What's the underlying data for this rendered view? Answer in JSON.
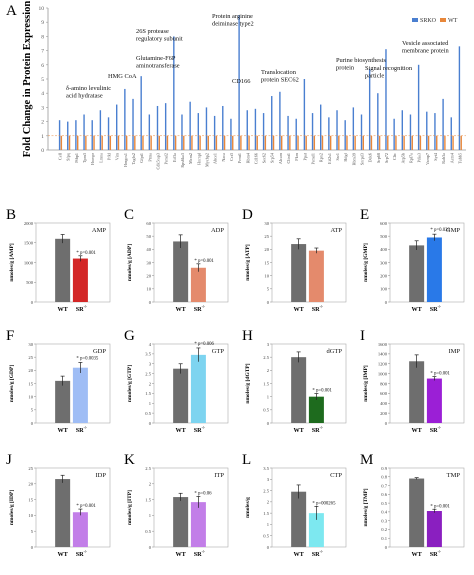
{
  "chart_data": [
    {
      "panel": "A",
      "type": "bar",
      "ylabel": "Fold Change in Protein Expression",
      "ylim": [
        0,
        10
      ],
      "yticks": [
        0,
        1,
        2,
        3,
        4,
        5,
        6,
        7,
        8,
        9,
        10
      ],
      "legend": [
        "SRKO",
        "WT"
      ],
      "colors": {
        "SRKO": "#4a7fd0",
        "WT": "#e8873a"
      },
      "categories": [
        "Cell",
        "Sfpq",
        "Ptbp1",
        "Tpm3",
        "Hnrnpr",
        "Lmna",
        "Pfkl",
        "Vim",
        "Hmgcs1",
        "Tagln2",
        "Gfpt1",
        "Ptma",
        "Cdk5rap3",
        "Psmd2",
        "Eif3a",
        "Rps6ka3",
        "Mcm2",
        "Hnrnpl",
        "Mycbp2",
        "Abce1",
        "Naca",
        "Cct3",
        "Prmt1",
        "Rbm4",
        "Cd166",
        "Sec62",
        "Srp54",
        "Alcam",
        "Clint1",
        "Pkm",
        "Ppat",
        "Psmd1",
        "Rpn2",
        "Eif2s1",
        "Ssr1",
        "Hdgf",
        "Rbm39",
        "Snrpd3",
        "Ddx6",
        "Srp68",
        "Srp72",
        "Cltc",
        "Atp5b",
        "Rpl7a",
        "Pdia3",
        "Vamp7",
        "Syt4",
        "Rab3a",
        "Actn4",
        "Tubb5"
      ],
      "series": [
        {
          "name": "SRKO",
          "values": [
            2.1,
            2.0,
            2.1,
            2.5,
            2.1,
            2.8,
            2.3,
            3.2,
            4.3,
            3.6,
            5.2,
            2.5,
            3.1,
            3.3,
            8.0,
            2.5,
            3.4,
            2.6,
            3.0,
            2.4,
            3.1,
            2.2,
            9.5,
            2.8,
            2.9,
            2.6,
            3.8,
            4.1,
            2.4,
            2.2,
            5.0,
            2.6,
            3.2,
            2.3,
            2.8,
            2.1,
            3.0,
            2.5,
            5.7,
            4.0,
            7.1,
            2.2,
            2.8,
            2.5,
            6.0,
            2.7,
            2.6,
            3.6,
            2.3,
            7.3
          ]
        },
        {
          "name": "WT",
          "values": [
            1,
            1,
            1,
            1,
            1,
            1,
            1,
            1,
            1,
            1,
            1,
            1,
            1,
            1,
            1,
            1,
            1,
            1,
            1,
            1,
            1,
            1,
            1,
            1,
            1,
            1,
            1,
            1,
            1,
            1,
            1,
            1,
            1,
            1,
            1,
            1,
            1,
            1,
            1,
            1,
            1,
            1,
            1,
            1,
            1,
            1,
            1,
            1,
            1,
            1
          ]
        }
      ],
      "annotations": [
        {
          "text": "δ-amino levulinic acid hydratase",
          "bar": 8
        },
        {
          "text": "HMG CoA",
          "bar": 10
        },
        {
          "text": "Glutamine-F6P aminotransferase",
          "bar": 14
        },
        {
          "text": "26S protease regulatory subunit",
          "bar": 14
        },
        {
          "text": "Protein arginine deiminase type2",
          "bar": 22
        },
        {
          "text": "CD166",
          "bar": 27
        },
        {
          "text": "Translocation protein SEC62",
          "bar": 31
        },
        {
          "text": "Purine biosynthesis protein",
          "bar": 40
        },
        {
          "text": "Signal recognition particle",
          "bar": 38
        },
        {
          "text": "Vesicle associated membrane protein",
          "bar": 49
        }
      ]
    },
    {
      "panel": "B",
      "type": "bar",
      "title": "AMP",
      "ylabel": "nmoles/g [AMP]",
      "categories": [
        "WT",
        "SR-/-"
      ],
      "values": [
        1600,
        1100
      ],
      "errors": [
        110,
        70
      ],
      "ylim": [
        0,
        2000
      ],
      "yticks": [
        0,
        500,
        1000,
        1500,
        2000
      ],
      "colors": [
        "#6e6e6e",
        "#d32626"
      ],
      "annotation": "* p=0.001"
    },
    {
      "panel": "C",
      "type": "bar",
      "title": "ADP",
      "ylabel": "nmoles/g [ADP]",
      "categories": [
        "WT",
        "SR-/-"
      ],
      "values": [
        46,
        26
      ],
      "errors": [
        5,
        3
      ],
      "ylim": [
        0,
        60
      ],
      "yticks": [
        0,
        10,
        20,
        30,
        40,
        50,
        60
      ],
      "colors": [
        "#6e6e6e",
        "#e48a6c"
      ],
      "annotation": "* p=0.001"
    },
    {
      "panel": "D",
      "type": "bar",
      "title": "ATP",
      "ylabel": "nmoles/g [ATP]",
      "categories": [
        "WT",
        "SR-/-"
      ],
      "values": [
        22,
        19.5
      ],
      "errors": [
        2,
        1
      ],
      "ylim": [
        0,
        30
      ],
      "yticks": [
        0,
        5,
        10,
        15,
        20,
        25,
        30
      ],
      "colors": [
        "#6e6e6e",
        "#e48a6c"
      ],
      "annotation": ""
    },
    {
      "panel": "E",
      "type": "bar",
      "title": "GMP",
      "ylabel": "nmoles/g [GMP]",
      "categories": [
        "WT",
        "SR-/-"
      ],
      "values": [
        430,
        490
      ],
      "errors": [
        35,
        25
      ],
      "ylim": [
        0,
        600
      ],
      "yticks": [
        0,
        100,
        200,
        300,
        400,
        500,
        600
      ],
      "colors": [
        "#6e6e6e",
        "#2979e8"
      ],
      "annotation": "* p=0.039"
    },
    {
      "panel": "F",
      "type": "bar",
      "title": "GDP",
      "ylabel": "nmoles/g [GDP]",
      "categories": [
        "WT",
        "SR-/-"
      ],
      "values": [
        16,
        21
      ],
      "errors": [
        1.8,
        2
      ],
      "ylim": [
        0,
        30
      ],
      "yticks": [
        0,
        5,
        10,
        15,
        20,
        25,
        30
      ],
      "colors": [
        "#6e6e6e",
        "#9fbdf5"
      ],
      "annotation": "* p=0.0035"
    },
    {
      "panel": "G",
      "type": "bar",
      "title": "GTP",
      "ylabel": "nmoles/g [GTP]",
      "categories": [
        "WT",
        "SR-/-"
      ],
      "values": [
        2.75,
        3.45
      ],
      "errors": [
        0.25,
        0.35
      ],
      "ylim": [
        0,
        4
      ],
      "yticks": [
        0,
        0.5,
        1,
        1.5,
        2,
        2.5,
        3,
        3.5,
        4
      ],
      "colors": [
        "#6e6e6e",
        "#7dd4f0"
      ],
      "annotation": "* p=0.006"
    },
    {
      "panel": "H",
      "type": "bar",
      "title": "dGTP",
      "ylabel": "nmoles/g [dGTP]",
      "categories": [
        "WT",
        "SR-/-"
      ],
      "values": [
        2.5,
        1.0
      ],
      "errors": [
        0.2,
        0.12
      ],
      "ylim": [
        0,
        3
      ],
      "yticks": [
        0,
        0.5,
        1,
        1.5,
        2,
        2.5,
        3
      ],
      "colors": [
        "#6e6e6e",
        "#1e6b1e"
      ],
      "annotation": "* p=0.001"
    },
    {
      "panel": "I",
      "type": "bar",
      "title": "IMP",
      "ylabel": "nmoles/g [IMP]",
      "categories": [
        "WT",
        "SR-/-"
      ],
      "values": [
        1250,
        900
      ],
      "errors": [
        130,
        40
      ],
      "ylim": [
        0,
        1600
      ],
      "yticks": [
        0,
        200,
        400,
        600,
        800,
        1000,
        1200,
        1400,
        1600
      ],
      "colors": [
        "#6e6e6e",
        "#9b1fd6"
      ],
      "annotation": "* p=0.001"
    },
    {
      "panel": "J",
      "type": "bar",
      "title": "IDP",
      "ylabel": "nmoles/g [IDP]",
      "categories": [
        "WT",
        "SR-/-"
      ],
      "values": [
        21.5,
        11
      ],
      "errors": [
        1.2,
        1
      ],
      "ylim": [
        0,
        25
      ],
      "yticks": [
        0,
        5,
        10,
        15,
        20,
        25
      ],
      "colors": [
        "#6e6e6e",
        "#c27ee8"
      ],
      "annotation": "* p=0.001"
    },
    {
      "panel": "K",
      "type": "bar",
      "title": "ITP",
      "ylabel": "nmoles/g [ITP]",
      "categories": [
        "WT",
        "SR-/-"
      ],
      "values": [
        1.58,
        1.42
      ],
      "errors": [
        0.12,
        0.18
      ],
      "ylim": [
        0,
        2.5
      ],
      "yticks": [
        0,
        0.5,
        1,
        1.5,
        2,
        2.5
      ],
      "colors": [
        "#6e6e6e",
        "#c27ee8"
      ],
      "annotation": "* p=0.06"
    },
    {
      "panel": "L",
      "type": "bar",
      "title": "CTP",
      "ylabel": "nmoles/g",
      "categories": [
        "WT",
        "SR-/-"
      ],
      "values": [
        2.45,
        1.5
      ],
      "errors": [
        0.3,
        0.3
      ],
      "ylim": [
        0,
        3.5
      ],
      "yticks": [
        0,
        0.5,
        1,
        1.5,
        2,
        2.5,
        3,
        3.5
      ],
      "colors": [
        "#6e6e6e",
        "#7de8f0"
      ],
      "annotation": "* p=000265"
    },
    {
      "panel": "M",
      "type": "bar",
      "title": "TMP",
      "ylabel": "nmoles/g [TMP]",
      "categories": [
        "WT",
        "SR-/-"
      ],
      "values": [
        0.78,
        0.41
      ],
      "errors": [
        0.01,
        0.02
      ],
      "ylim": [
        0,
        0.9
      ],
      "yticks": [
        0,
        0.1,
        0.2,
        0.3,
        0.4,
        0.5,
        0.6,
        0.7,
        0.8,
        0.9
      ],
      "colors": [
        "#6e6e6e",
        "#8a1fc0"
      ],
      "annotation": "* p=0.001"
    }
  ]
}
